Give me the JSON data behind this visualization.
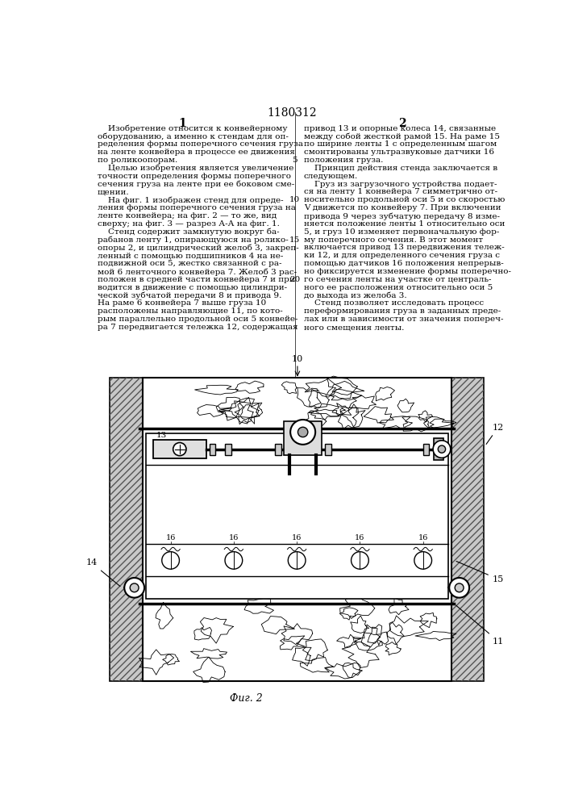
{
  "title_number": "1180312",
  "col1_header": "1",
  "col2_header": "2",
  "col1_text": [
    "    Изобретение относится к конвейерному",
    "оборудованию, а именно к стендам для оп-",
    "ределения формы поперечного сечения груза",
    "на ленте конвейера в процессе ее движения",
    "по роликоопорам.",
    "    Целью изобретения является увеличение",
    "точности определения формы поперечного",
    "сечения груза на ленте при ее боковом сме-",
    "щении.",
    "    На фиг. 1 изображен стенд для опреде-",
    "ления формы поперечного сечения груза на",
    "ленте конвейера; на фиг. 2 — то же, вид",
    "сверху; на фиг. 3 — разрез А-А на фиг. 1.",
    "    Стенд содержит замкнутую вокруг ба-",
    "рабанов ленту 1, опирающуюся на ролико-",
    "опоры 2, и цилиндрический желоб 3, закреп-",
    "ленный с помощью подшипников 4 на не-",
    "подвижной оси 5, жестко связанной с ра-",
    "мой 6 ленточного конвейера 7. Желоб 3 рас-",
    "положен в средней части конвейера 7 и при",
    "водится в движение с помощью цилиндри-",
    "ческой зубчатой передачи 8 и привода 9.",
    "На раме 6 конвейера 7 выше груза 10",
    "расположены направляющие 11, по кото-",
    "рым параллельно продольной оси 5 конвейе-",
    "ра 7 передвигается тележка 12, содержащая"
  ],
  "col2_text": [
    "привод 13 и опорные колеса 14, связанные",
    "между собой жесткой рамой 15. На раме 15",
    "по ширине ленты 1 с определенным шагом",
    "смонтированы ультразвуковые датчики 16",
    "положения груза.",
    "    Принцип действия стенда заключается в",
    "следующем.",
    "    Груз из загрузочного устройства подает-",
    "ся на ленту 1 конвейера 7 симметрично от-",
    "носительно продольной оси 5 и со скоростью",
    "V движется по конвейеру 7. При включении",
    "привода 9 через зубчатую передачу 8 изме-",
    "няется положение ленты 1 относительно оси",
    "5, и груз 10 изменяет первоначальную фор-",
    "му поперечного сечения. В этот момент",
    "включается привод 13 передвижения тележ-",
    "ки 12, и для определенного сечения груза с",
    "помощью датчиков 16 положения непрерыв-",
    "но фиксируется изменение формы поперечно-",
    "го сечения ленты на участке от централь-",
    "ного ее расположения относительно оси 5",
    "до выхода из желоба 3.",
    "    Стенд позволяет исследовать процесс",
    "переформирования груза в заданных преде-",
    "лах или в зависимости от значения попереч-",
    "ного смещения ленты."
  ],
  "line_numbers": [
    5,
    10,
    15,
    20
  ],
  "fig_label": "Фиг. 2",
  "bg_color": "#ffffff",
  "text_color": "#000000"
}
